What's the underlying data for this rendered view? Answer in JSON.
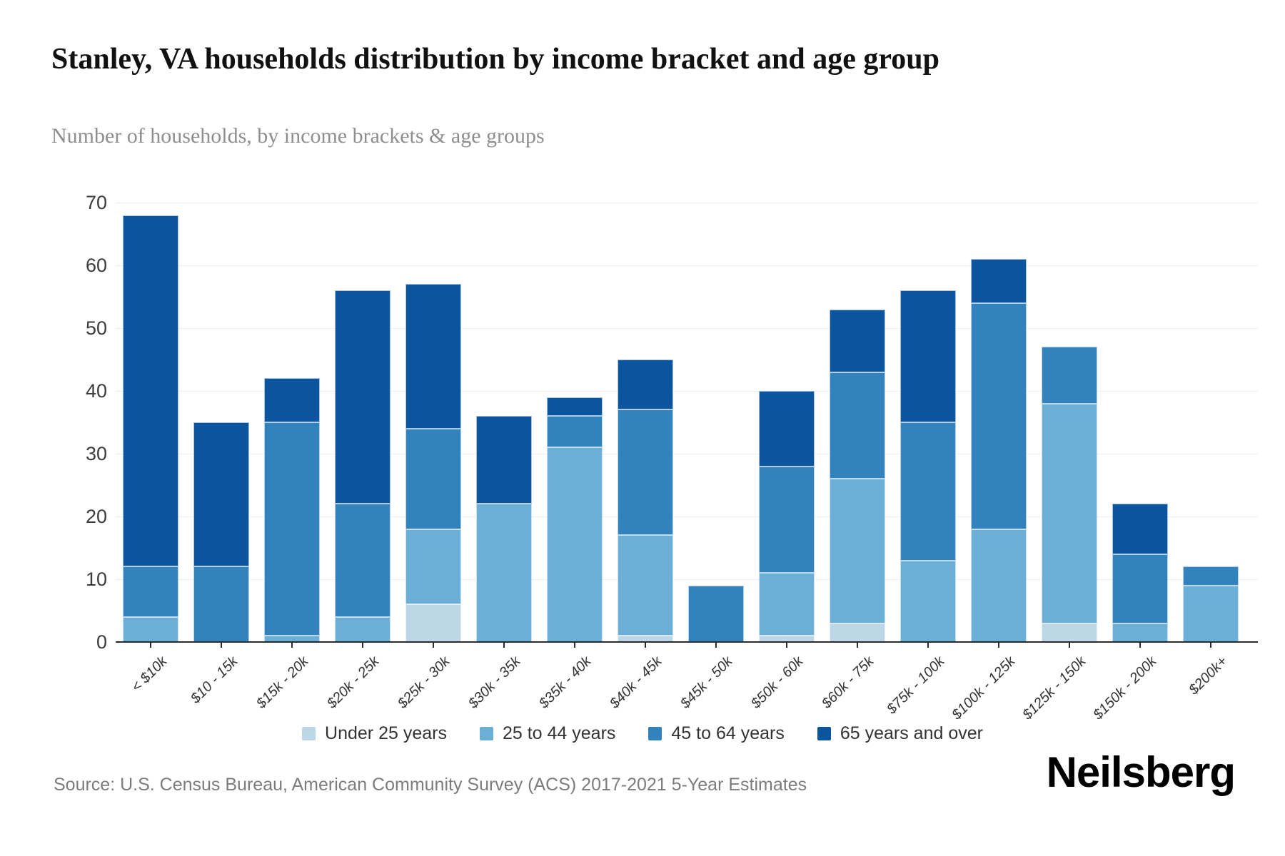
{
  "title": "Stanley, VA households distribution by income bracket and age group",
  "subtitle": "Number of households, by income brackets & age groups",
  "source": "Source: U.S. Census Bureau, American Community Survey (ACS) 2017-2021 5-Year Estimates",
  "logo": "Neilsberg",
  "chart_data": {
    "type": "bar",
    "stacked": true,
    "title": "Stanley, VA households distribution by income bracket and age group",
    "xlabel": "",
    "ylabel": "Number of households",
    "ylim": [
      0,
      70
    ],
    "y_ticks": [
      0,
      10,
      20,
      30,
      40,
      50,
      60,
      70
    ],
    "grid": true,
    "legend_position": "bottom",
    "categories": [
      "< $10k",
      "$10 - 15k",
      "$15k - 20k",
      "$20k - 25k",
      "$25k - 30k",
      "$30k - 35k",
      "$35k - 40k",
      "$40k - 45k",
      "$45k - 50k",
      "$50k - 60k",
      "$60k - 75k",
      "$75k - 100k",
      "$100k - 125k",
      "$125k - 150k",
      "$150k - 200k",
      "$200k+"
    ],
    "series": [
      {
        "name": "Under 25 years",
        "color": "#bdd7e7",
        "values": [
          0,
          0,
          0,
          0,
          6,
          0,
          0,
          1,
          0,
          1,
          3,
          0,
          0,
          3,
          0,
          0
        ]
      },
      {
        "name": "25 to 44 years",
        "color": "#6baed6",
        "values": [
          4,
          0,
          1,
          4,
          12,
          22,
          31,
          16,
          0,
          10,
          23,
          13,
          18,
          35,
          3,
          9
        ]
      },
      {
        "name": "45 to 64 years",
        "color": "#3182bd",
        "values": [
          8,
          12,
          34,
          18,
          16,
          0,
          5,
          20,
          9,
          17,
          17,
          22,
          36,
          9,
          11,
          3
        ]
      },
      {
        "name": "65 years and over",
        "color": "#0b559f",
        "values": [
          56,
          23,
          7,
          34,
          23,
          14,
          3,
          8,
          0,
          12,
          10,
          21,
          7,
          0,
          8,
          0
        ]
      }
    ],
    "totals": [
      68,
      35,
      42,
      56,
      57,
      36,
      39,
      45,
      9,
      40,
      53,
      56,
      61,
      47,
      22,
      12
    ]
  }
}
